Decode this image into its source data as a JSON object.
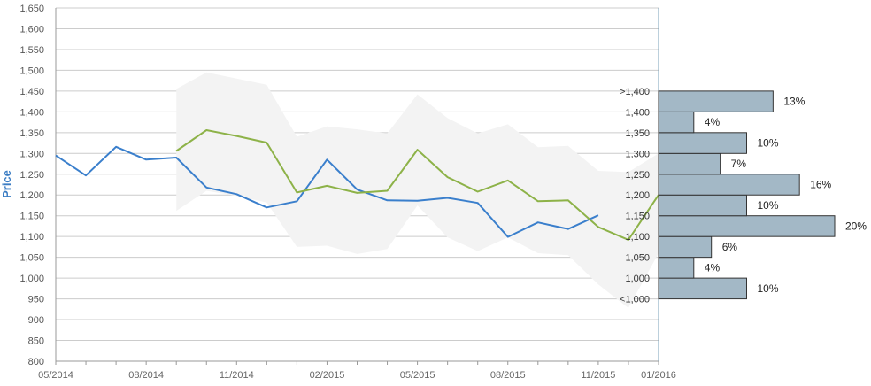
{
  "colors": {
    "actual": "#3a7fcc",
    "forecast": "#8db248",
    "band": "#f3f3f3",
    "grid": "#cccccc",
    "hist_fill": "#a3b8c6",
    "hist_stroke": "#333333",
    "ylabel": "#3a7cc3"
  },
  "chart_data": {
    "type": "line",
    "ylabel": "Price",
    "ylim": [
      800,
      1650
    ],
    "yticks": [
      "800",
      "850",
      "900",
      "950",
      "1,000",
      "1,050",
      "1,100",
      "1,150",
      "1,200",
      "1,250",
      "1,300",
      "1,350",
      "1,400",
      "1,450",
      "1,500",
      "1,550",
      "1,600",
      "1,650"
    ],
    "ytick_values": [
      800,
      850,
      900,
      950,
      1000,
      1050,
      1100,
      1150,
      1200,
      1250,
      1300,
      1350,
      1400,
      1450,
      1500,
      1550,
      1600,
      1650
    ],
    "x_months": [
      "2014-05",
      "2014-06",
      "2014-07",
      "2014-08",
      "2014-09",
      "2014-10",
      "2014-11",
      "2014-12",
      "2015-01",
      "2015-02",
      "2015-03",
      "2015-04",
      "2015-05",
      "2015-06",
      "2015-07",
      "2015-08",
      "2015-09",
      "2015-10",
      "2015-11",
      "2015-12",
      "2016-01"
    ],
    "xtick_labels": [
      {
        "month": "2014-05",
        "label": "05/2014"
      },
      {
        "month": "2014-08",
        "label": "08/2014"
      },
      {
        "month": "2014-11",
        "label": "11/2014"
      },
      {
        "month": "2015-02",
        "label": "02/2015"
      },
      {
        "month": "2015-05",
        "label": "05/2015"
      },
      {
        "month": "2015-08",
        "label": "08/2015"
      },
      {
        "month": "2015-11",
        "label": "11/2015"
      },
      {
        "month": "2016-01",
        "label": "01/2016"
      }
    ],
    "grid": true,
    "series": [
      {
        "key": "actual",
        "x": [
          "2014-05",
          "2014-06",
          "2014-07",
          "2014-08",
          "2014-09",
          "2014-10",
          "2014-11",
          "2014-12",
          "2015-01",
          "2015-02",
          "2015-03",
          "2015-04",
          "2015-05",
          "2015-06",
          "2015-07",
          "2015-08",
          "2015-09",
          "2015-10",
          "2015-11"
        ],
        "values": [
          1295,
          1247,
          1316,
          1285,
          1290,
          1218,
          1202,
          1170,
          1185,
          1285,
          1213,
          1187,
          1186,
          1193,
          1181,
          1099,
          1134,
          1118,
          1151
        ]
      },
      {
        "key": "forecast",
        "x": [
          "2014-09",
          "2014-10",
          "2014-11",
          "2014-12",
          "2015-01",
          "2015-02",
          "2015-03",
          "2015-04",
          "2015-05",
          "2015-06",
          "2015-07",
          "2015-08",
          "2015-09",
          "2015-10",
          "2015-11",
          "2015-12",
          "2016-01"
        ],
        "values": [
          1306,
          1356,
          1342,
          1326,
          1206,
          1222,
          1205,
          1210,
          1309,
          1243,
          1208,
          1235,
          1185,
          1187,
          1123,
          1092,
          1200
        ]
      }
    ],
    "band": {
      "x": [
        "2014-09",
        "2014-10",
        "2014-11",
        "2014-12",
        "2015-01",
        "2015-02",
        "2015-03",
        "2015-04",
        "2015-05",
        "2015-06",
        "2015-07",
        "2015-08",
        "2015-09",
        "2015-10",
        "2015-11",
        "2015-12",
        "2016-01"
      ],
      "upper": [
        1455,
        1495,
        1480,
        1465,
        1340,
        1365,
        1358,
        1348,
        1442,
        1385,
        1348,
        1370,
        1315,
        1318,
        1258,
        1255,
        1300
      ],
      "lower": [
        1162,
        1210,
        1198,
        1182,
        1075,
        1078,
        1058,
        1070,
        1175,
        1098,
        1065,
        1098,
        1060,
        1055,
        985,
        928,
        1060
      ]
    },
    "histogram": {
      "type": "bar",
      "categories": [
        "<1,000",
        "1,000",
        "1,050",
        "1,100",
        "1,150",
        "1,200",
        "1,250",
        "1,300",
        "1,350",
        "1,400",
        ">1,400"
      ],
      "values": [
        10,
        4,
        6,
        20,
        10,
        16,
        7,
        10,
        4,
        13
      ],
      "labels": [
        "10%",
        "4%",
        "6%",
        "20%",
        "10%",
        "16%",
        "7%",
        "10%",
        "4%",
        "13%"
      ],
      "bin_edges": [
        950,
        1000,
        1050,
        1100,
        1150,
        1200,
        1250,
        1300,
        1350,
        1400,
        1450
      ]
    }
  }
}
